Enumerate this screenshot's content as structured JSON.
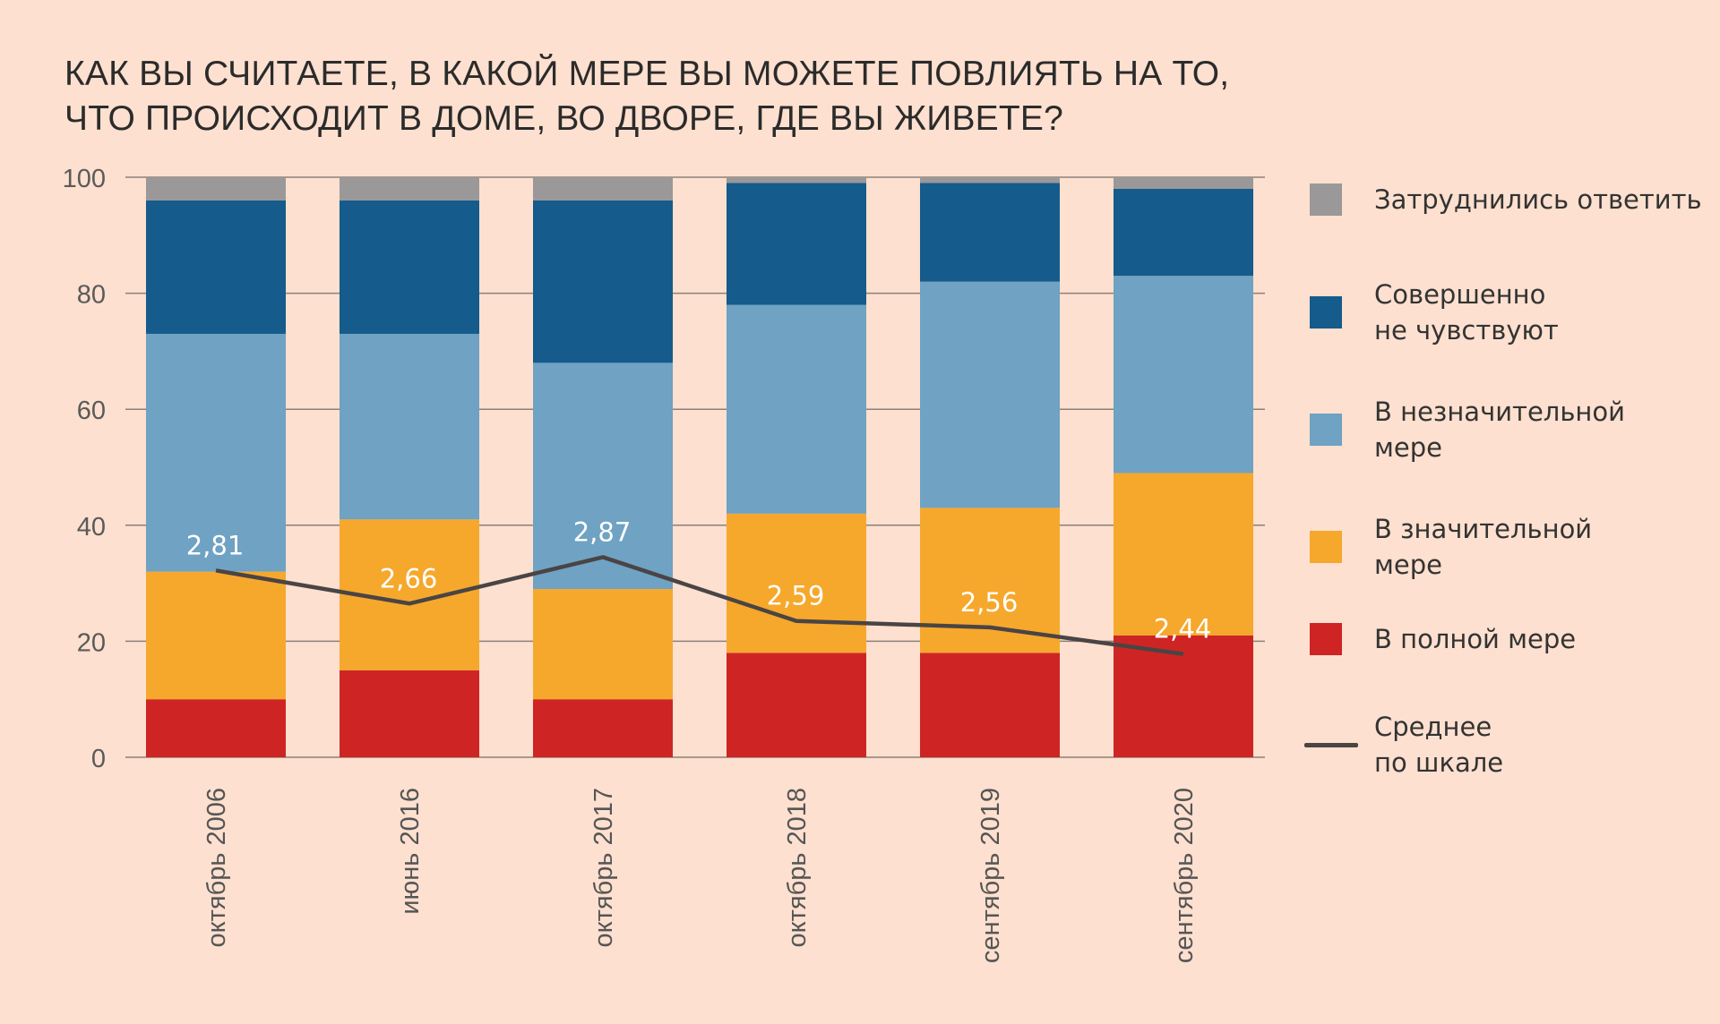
{
  "title": {
    "line1": "КАК ВЫ СЧИТАЕТЕ, В КАКОЙ МЕРЕ ВЫ МОЖЕТЕ ПОВЛИЯТЬ НА ТО,",
    "line2": "ЧТО ПРОИСХОДИТ В ДОМЕ, ВО ДВОРЕ, ГДЕ ВЫ ЖИВЕТЕ?"
  },
  "legend": [
    {
      "key": "hard",
      "label": "Затруднились ответить",
      "color": "#9a9898"
    },
    {
      "key": "not_at_all",
      "label": "Совершенно\nне чувствуют",
      "color": "#155b8c"
    },
    {
      "key": "slight",
      "label": "В незначительной\nмере",
      "color": "#6fa2c3"
    },
    {
      "key": "significant",
      "label": "В значительной\nмере",
      "color": "#f6a82c"
    },
    {
      "key": "full",
      "label": "В полной мере",
      "color": "#ce2524"
    },
    {
      "key": "mean",
      "label": "Среднее\nпо шкале",
      "color": "#4a4444",
      "line": true
    }
  ],
  "chart_data": {
    "type": "bar",
    "stacked": true,
    "categories": [
      "октябрь 2006",
      "июнь 2016",
      "октябрь 2017",
      "октябрь 2018",
      "сентябрь 2019",
      "сентябрь 2020"
    ],
    "series": [
      {
        "name": "В полной мере",
        "values": [
          10,
          15,
          10,
          18,
          18,
          21
        ]
      },
      {
        "name": "В значительной мере",
        "values": [
          22,
          26,
          19,
          24,
          25,
          28
        ]
      },
      {
        "name": "В незначительной мере",
        "values": [
          41,
          32,
          39,
          36,
          39,
          34
        ]
      },
      {
        "name": "Совершенно не чувствуют",
        "values": [
          23,
          23,
          28,
          21,
          17,
          15
        ]
      },
      {
        "name": "Затруднились ответить",
        "values": [
          4,
          4,
          4,
          1,
          1,
          2
        ]
      }
    ],
    "mean_line": {
      "name": "Среднее по шкале",
      "labels": [
        "2,81",
        "2,66",
        "2,87",
        "2,59",
        "2,56",
        "2,44"
      ],
      "values": [
        2.81,
        2.66,
        2.87,
        2.59,
        2.56,
        2.44
      ],
      "plotted_at": [
        32.2,
        26.5,
        34.5,
        23.5,
        22.4,
        17.8
      ]
    },
    "y_ticks": [
      "0",
      "20",
      "40",
      "60",
      "80",
      "100"
    ],
    "ylim": [
      0,
      100
    ],
    "grid": true,
    "legend_position": "right"
  }
}
